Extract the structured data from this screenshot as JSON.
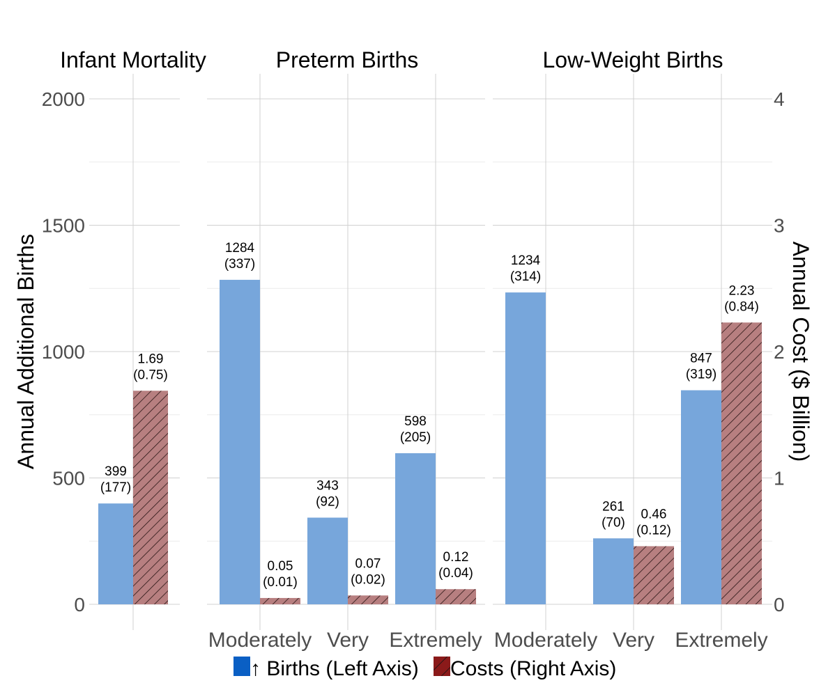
{
  "chart_data": {
    "type": "bar",
    "left_axis": {
      "title": "Annual Additional Births",
      "ticks": [
        0,
        500,
        1000,
        1500,
        2000
      ],
      "ylim": [
        0,
        2000
      ]
    },
    "right_axis": {
      "title": "Annual Cost ($ Billion)",
      "ticks": [
        0,
        1,
        2,
        3,
        4
      ],
      "ylim": [
        0,
        4
      ]
    },
    "grid": true,
    "legend": {
      "position": "bottom",
      "items": [
        {
          "label": "↑ Births (Left Axis)",
          "color": "#0a5fc4"
        },
        {
          "label": "Costs (Right Axis)",
          "color": "#8b1a1a"
        }
      ]
    },
    "colors": {
      "births": "#77a6db",
      "costs": "#b77f80",
      "hatch": "#2a1515"
    },
    "panels": [
      {
        "title": "Infant Mortality",
        "categories": [
          {
            "label": "",
            "births": 399,
            "births_se": "(177)",
            "cost": 1.69,
            "cost_se": "(0.75)"
          }
        ]
      },
      {
        "title": "Preterm Births",
        "categories": [
          {
            "label": "Moderately",
            "births": 1284,
            "births_se": "(337)",
            "cost": 0.05,
            "cost_se": "(0.01)"
          },
          {
            "label": "Very",
            "births": 343,
            "births_se": "(92)",
            "cost": 0.07,
            "cost_se": "(0.02)"
          },
          {
            "label": "Extremely",
            "births": 598,
            "births_se": "(205)",
            "cost": 0.12,
            "cost_se": "(0.04)"
          }
        ]
      },
      {
        "title": "Low-Weight Births",
        "categories": [
          {
            "label": "Moderately",
            "births": 1234,
            "births_se": "(314)",
            "cost": null,
            "cost_se": null
          },
          {
            "label": "Very",
            "births": 261,
            "births_se": "(70)",
            "cost": 0.46,
            "cost_se": "(0.12)"
          },
          {
            "label": "Extremely",
            "births": 847,
            "births_se": "(319)",
            "cost": 2.23,
            "cost_se": "(0.84)"
          }
        ]
      }
    ]
  }
}
